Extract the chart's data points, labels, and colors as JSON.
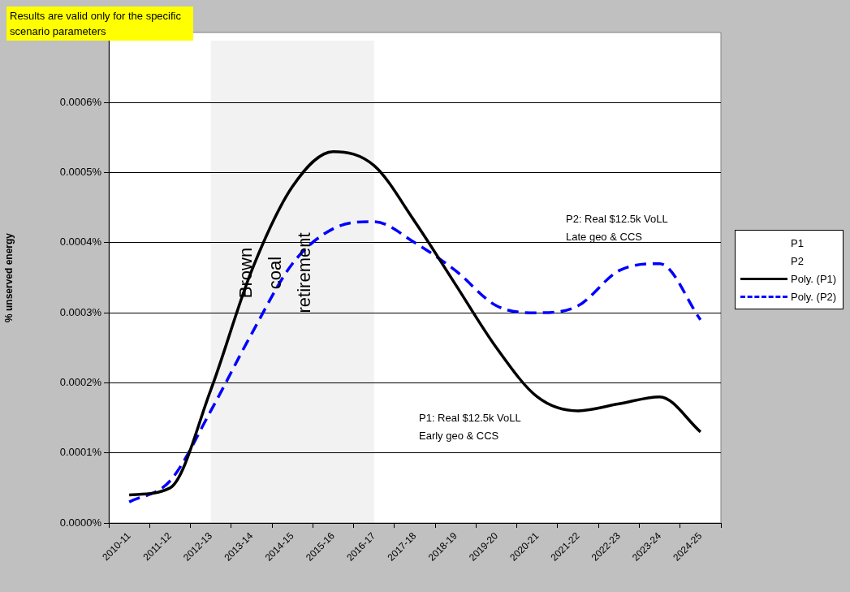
{
  "chart_data": {
    "type": "line",
    "ylabel": "% unserved energy",
    "categories": [
      "2010-11",
      "2011-12",
      "2012-13",
      "2013-14",
      "2014-15",
      "2015-16",
      "2016-17",
      "2017-18",
      "2018-19",
      "2019-20",
      "2020-21",
      "2021-22",
      "2022-23",
      "2023-24",
      "2024-25"
    ],
    "ylim": [
      0,
      0.0007
    ],
    "yticks": [
      {
        "value": 0,
        "label": "0.0000%"
      },
      {
        "value": 0.0001,
        "label": "0.0001%"
      },
      {
        "value": 0.0002,
        "label": "0.0002%"
      },
      {
        "value": 0.0003,
        "label": "0.0003%"
      },
      {
        "value": 0.0004,
        "label": "0.0004%"
      },
      {
        "value": 0.0005,
        "label": "0.0005%"
      },
      {
        "value": 0.0006,
        "label": "0.0006%"
      }
    ],
    "grid": "y",
    "legend": "right",
    "series": [
      {
        "name": "P1",
        "values": [
          null,
          null,
          null,
          null,
          null,
          null,
          null,
          null,
          null,
          null,
          null,
          null,
          null,
          null,
          null
        ]
      },
      {
        "name": "P2",
        "values": [
          null,
          null,
          null,
          null,
          null,
          null,
          null,
          null,
          null,
          null,
          null,
          null,
          null,
          null,
          null
        ]
      },
      {
        "name": "Poly. (P1)",
        "color": "#000000",
        "line_style": "solid",
        "values": [
          4e-05,
          5e-05,
          0.00019,
          0.00036,
          0.00048,
          0.00053,
          0.00051,
          0.00043,
          0.00034,
          0.00025,
          0.00018,
          0.00016,
          0.00017,
          0.00018,
          0.00013
        ]
      },
      {
        "name": "Poly. (P2)",
        "color": "#0000ff",
        "line_style": "dashed",
        "values": [
          3e-05,
          6e-05,
          0.00016,
          0.00027,
          0.00037,
          0.00042,
          0.00043,
          0.0004,
          0.00036,
          0.00031,
          0.0003,
          0.00031,
          0.00036,
          0.00037,
          0.00029
        ]
      }
    ],
    "bands": [
      {
        "axis": "x",
        "from": "2012-13",
        "to": "2016-17",
        "label": "Brown coal retirement",
        "color": "#f2f2f2"
      }
    ],
    "annotations": [
      "Results are valid only for the specific scenario parameters",
      "P2: Real $12.5k VoLL\nLate geo & CCS",
      "P1: Real $12.5k VoLL\nEarly geo & CCS"
    ]
  }
}
